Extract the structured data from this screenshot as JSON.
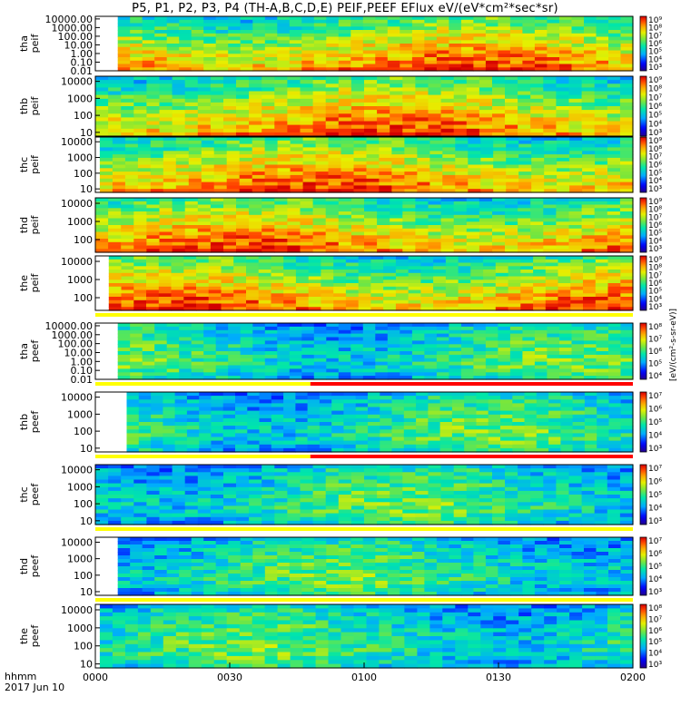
{
  "title": "P5, P1, P2, P3, P4 (TH-A,B,C,D,E) PEIF,PEEF EFlux eV/(eV*cm²*sec*sr)",
  "chart_data": {
    "type": "heatmap",
    "x_axis": {
      "label": "hhmm",
      "date": "2017 Jun 10",
      "ticks": [
        "0000",
        "0030",
        "0100",
        "0130",
        "0200"
      ],
      "range": [
        "00:00",
        "02:00"
      ]
    },
    "colorbar_label": "[eV/(cm²-s-sr-eV)]",
    "panels": [
      {
        "name": "tha peif",
        "ylabel": [
          "tha",
          "peif"
        ],
        "yticks": [
          "10000.00",
          "1000.00",
          "100.00",
          "10.00",
          "1.00",
          "0.10",
          "0.01"
        ],
        "ylim": [
          0.01,
          20000
        ],
        "cbar_ticks": [
          "10⁹",
          "10⁸",
          "10⁷",
          "10⁶",
          "10⁵",
          "10⁴",
          "10³"
        ],
        "cbar_range": [
          3,
          9
        ],
        "data_start": "00:05",
        "flag": null
      },
      {
        "name": "thb peif",
        "ylabel": [
          "thb",
          "peif"
        ],
        "yticks": [
          "10000",
          "1000",
          "100",
          "10"
        ],
        "ylim": [
          6,
          20000
        ],
        "cbar_ticks": [
          "10⁹",
          "10⁸",
          "10⁷",
          "10⁶",
          "10⁵",
          "10⁴",
          "10³"
        ],
        "cbar_range": [
          3,
          9
        ],
        "data_start": "00:00",
        "flag": null
      },
      {
        "name": "thc peif",
        "ylabel": [
          "thc",
          "peif"
        ],
        "yticks": [
          "10000",
          "1000",
          "100",
          "10"
        ],
        "ylim": [
          6,
          20000
        ],
        "cbar_ticks": [
          "10⁹",
          "10⁸",
          "10⁷",
          "10⁶",
          "10⁵",
          "10⁴",
          "10³"
        ],
        "cbar_range": [
          3,
          9
        ],
        "data_start": "00:01",
        "flag": null
      },
      {
        "name": "thd peif",
        "ylabel": [
          "thd",
          "peif"
        ],
        "yticks": [
          "10000",
          "1000",
          "100"
        ],
        "ylim": [
          20,
          20000
        ],
        "cbar_ticks": [
          "10⁹",
          "10⁸",
          "10⁷",
          "10⁶",
          "10⁵",
          "10⁴",
          "10³"
        ],
        "cbar_range": [
          3,
          9
        ],
        "data_start": "00:00",
        "flag": null
      },
      {
        "name": "the peif",
        "ylabel": [
          "the",
          "peif"
        ],
        "yticks": [
          "10000",
          "1000",
          "100"
        ],
        "ylim": [
          20,
          20000
        ],
        "cbar_ticks": [
          "10⁹",
          "10⁸",
          "10⁷",
          "10⁶",
          "10⁵",
          "10⁴",
          "10³"
        ],
        "cbar_range": [
          3,
          9
        ],
        "data_start": "00:03",
        "flag": "yellow"
      },
      {
        "name": "tha peef",
        "ylabel": [
          "tha",
          "peef"
        ],
        "yticks": [
          "10000.00",
          "1000.00",
          "100.00",
          "10.00",
          "1.00",
          "0.10",
          "0.01"
        ],
        "ylim": [
          0.01,
          20000
        ],
        "cbar_ticks": [
          "10⁸",
          "10⁷",
          "10⁶",
          "10⁵",
          "10⁴"
        ],
        "cbar_range": [
          4,
          8
        ],
        "data_start": "00:05",
        "flag": "yellow-red"
      },
      {
        "name": "thb peef",
        "ylabel": [
          "thb",
          "peef"
        ],
        "yticks": [
          "10000",
          "1000",
          "100",
          "10"
        ],
        "ylim": [
          6,
          20000
        ],
        "cbar_ticks": [
          "10⁷",
          "10⁶",
          "10⁵",
          "10⁴",
          "10³"
        ],
        "cbar_range": [
          3,
          7
        ],
        "data_start": "00:07",
        "flag": "yellow-red"
      },
      {
        "name": "thc peef",
        "ylabel": [
          "thc",
          "peef"
        ],
        "yticks": [
          "10000",
          "1000",
          "100",
          "10"
        ],
        "ylim": [
          6,
          20000
        ],
        "cbar_ticks": [
          "10⁷",
          "10⁶",
          "10⁵",
          "10⁴",
          "10³"
        ],
        "cbar_range": [
          3,
          7
        ],
        "data_start": "00:00",
        "flag": "yellow"
      },
      {
        "name": "thd peef",
        "ylabel": [
          "thd",
          "peef"
        ],
        "yticks": [
          "10000",
          "1000",
          "100",
          "10"
        ],
        "ylim": [
          6,
          20000
        ],
        "cbar_ticks": [
          "10⁷",
          "10⁶",
          "10⁵",
          "10⁴",
          "10³"
        ],
        "cbar_range": [
          3,
          7
        ],
        "data_start": "00:05",
        "flag": "yellow"
      },
      {
        "name": "the peef",
        "ylabel": [
          "the",
          "peef"
        ],
        "yticks": [
          "10000",
          "1000",
          "100",
          "10"
        ],
        "ylim": [
          6,
          20000
        ],
        "cbar_ticks": [
          "10⁸",
          "10⁷",
          "10⁶",
          "10⁵",
          "10⁴",
          "10³"
        ],
        "cbar_range": [
          3,
          8
        ],
        "data_start": "00:01",
        "flag": null
      }
    ]
  }
}
